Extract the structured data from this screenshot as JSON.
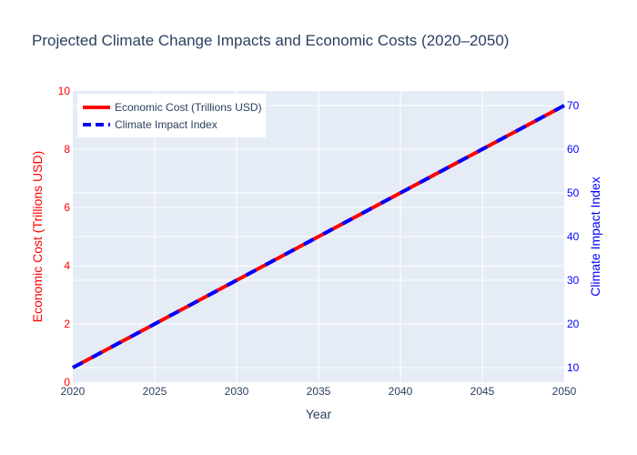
{
  "chart_data": {
    "type": "line",
    "title": "Projected Climate Change Impacts and Economic Costs (2020–2050)",
    "xlabel": "Year",
    "ylabel": "Economic Cost (Trillions USD)",
    "y2label": "Climate Impact Index",
    "xlim": [
      2020,
      2050
    ],
    "ylim": [
      0,
      10
    ],
    "y2lim": [
      6.67,
      73.33
    ],
    "xticks": [
      2020,
      2025,
      2030,
      2035,
      2040,
      2045,
      2050
    ],
    "yticks": [
      0,
      2,
      4,
      6,
      8,
      10
    ],
    "y2ticks": [
      10,
      20,
      30,
      40,
      50,
      60,
      70
    ],
    "grid": true,
    "legend": {
      "placement": "top-left"
    },
    "colors": {
      "title": "#2a3f5f",
      "plot_bg": "#e5ecf6",
      "grid": "#ffffff",
      "axis_text": "#2a3f5f",
      "left_axis": "#ff0000",
      "right_axis": "#0000ff"
    },
    "series": [
      {
        "name": "Economic Cost (Trillions USD)",
        "axis": "y",
        "color": "#ff0000",
        "dash": "solid",
        "x": [
          2020,
          2025,
          2030,
          2035,
          2040,
          2045,
          2050
        ],
        "values": [
          0.5,
          2.0,
          3.5,
          5.0,
          6.5,
          8.0,
          9.5
        ]
      },
      {
        "name": "Climate Impact Index",
        "axis": "y2",
        "color": "#0000ff",
        "dash": "dash",
        "x": [
          2020,
          2025,
          2030,
          2035,
          2040,
          2045,
          2050
        ],
        "values": [
          10,
          20,
          30,
          40,
          50,
          60,
          70
        ]
      }
    ]
  }
}
